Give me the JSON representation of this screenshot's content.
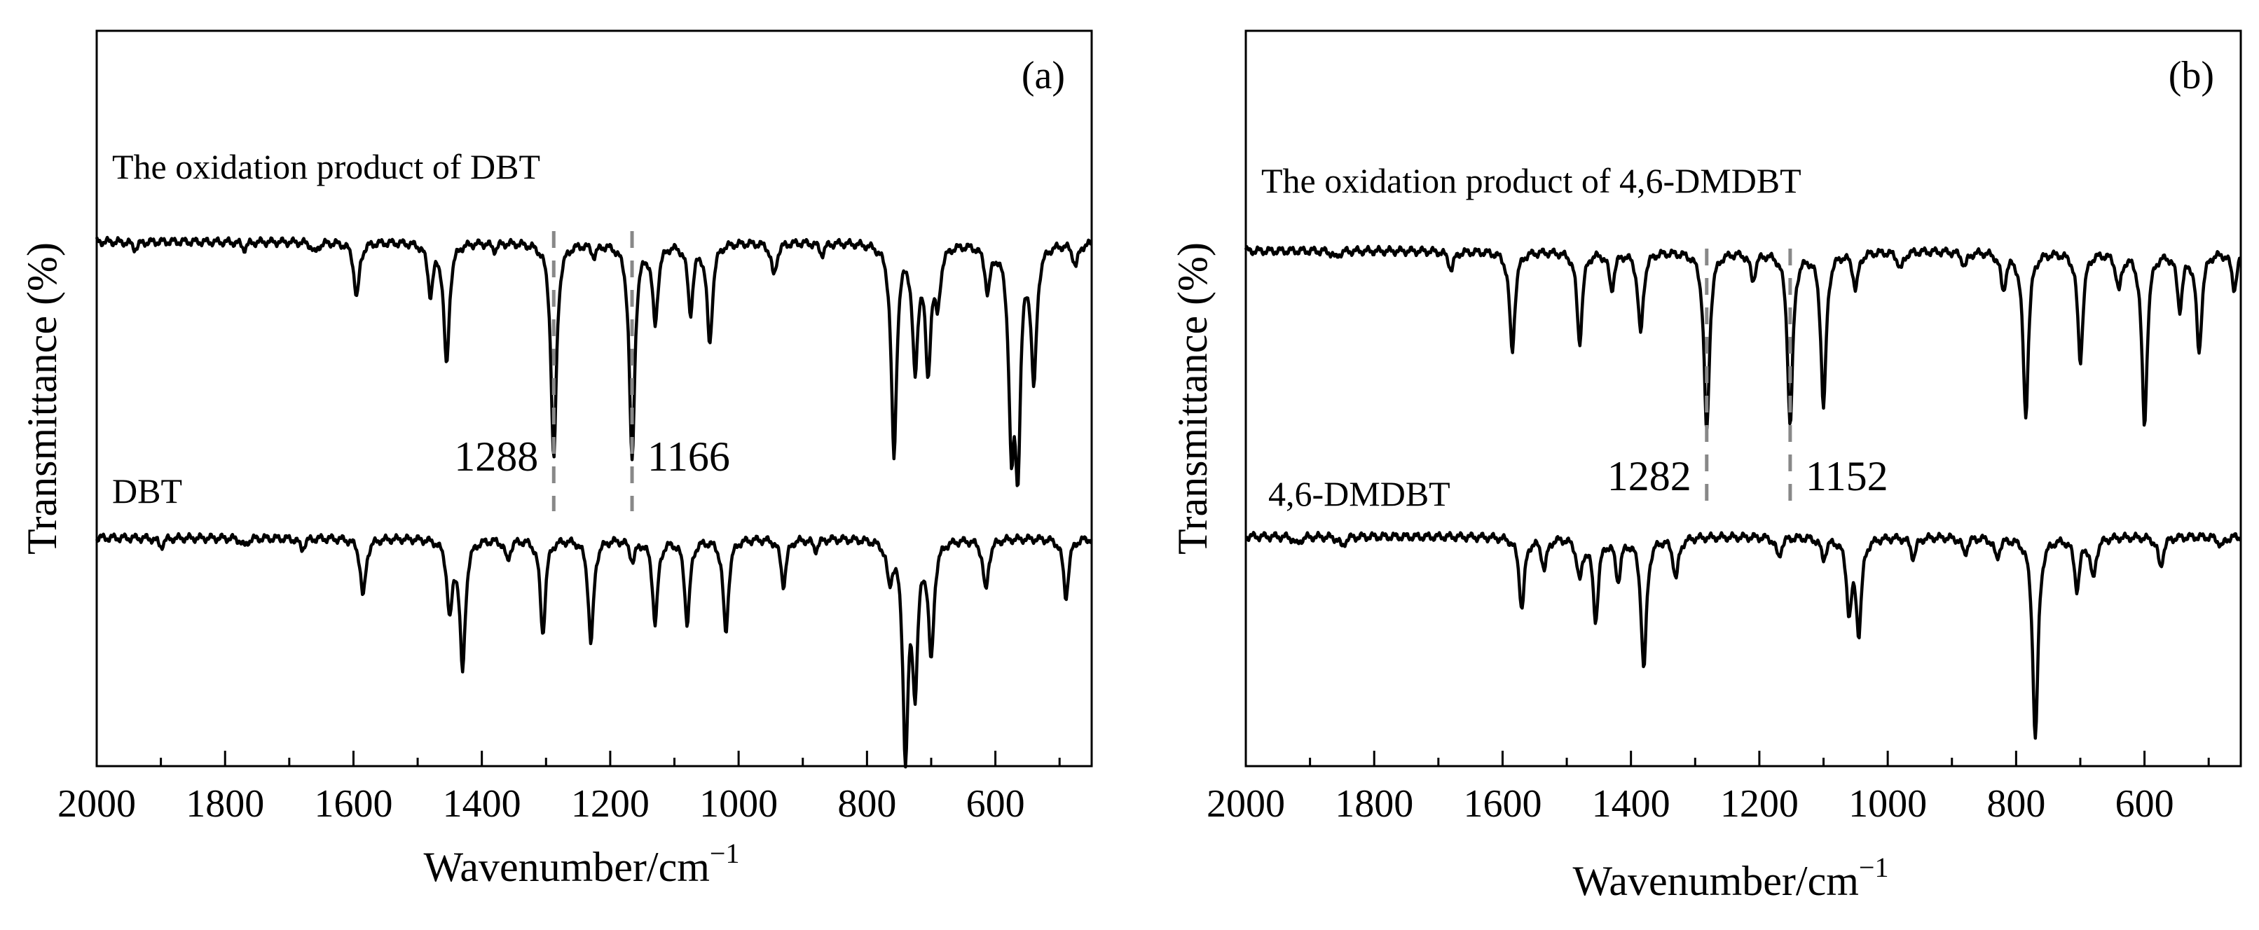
{
  "chart_data": [
    {
      "panel": "(a)",
      "type": "line",
      "xlabel": "Wavenumber/cm",
      "xlabel_sup": "−1",
      "ylabel": "Transmittance (%)",
      "xlim": [
        2000,
        450
      ],
      "x_ticks": [
        2000,
        1800,
        1600,
        1400,
        1200,
        1000,
        800,
        600
      ],
      "series": [
        {
          "name": "The oxidation product of DBT",
          "peaks": [
            [
              1940,
              0.03
            ],
            [
              1770,
              0.03
            ],
            [
              1660,
              0.05
            ],
            [
              1595,
              0.25
            ],
            [
              1480,
              0.22
            ],
            [
              1455,
              0.55
            ],
            [
              1380,
              0.03
            ],
            [
              1288,
              0.98
            ],
            [
              1225,
              0.05
            ],
            [
              1166,
              0.98
            ],
            [
              1130,
              0.35
            ],
            [
              1075,
              0.3
            ],
            [
              1045,
              0.45
            ],
            [
              945,
              0.15
            ],
            [
              870,
              0.05
            ],
            [
              758,
              0.95
            ],
            [
              725,
              0.55
            ],
            [
              705,
              0.55
            ],
            [
              690,
              0.25
            ],
            [
              612,
              0.2
            ],
            [
              575,
              0.82
            ],
            [
              565,
              0.9
            ],
            [
              540,
              0.6
            ],
            [
              475,
              0.1
            ]
          ]
        },
        {
          "name": "DBT",
          "peaks": [
            [
              1900,
              0.04
            ],
            [
              1770,
              0.04
            ],
            [
              1680,
              0.05
            ],
            [
              1585,
              0.28
            ],
            [
              1450,
              0.35
            ],
            [
              1430,
              0.62
            ],
            [
              1360,
              0.1
            ],
            [
              1305,
              0.45
            ],
            [
              1230,
              0.5
            ],
            [
              1165,
              0.1
            ],
            [
              1130,
              0.4
            ],
            [
              1080,
              0.4
            ],
            [
              1020,
              0.45
            ],
            [
              930,
              0.22
            ],
            [
              880,
              0.05
            ],
            [
              765,
              0.18
            ],
            [
              740,
              1.0
            ],
            [
              725,
              0.65
            ],
            [
              700,
              0.55
            ],
            [
              615,
              0.25
            ],
            [
              490,
              0.28
            ]
          ]
        }
      ],
      "annotations": [
        {
          "x": 1288,
          "text": "1288"
        },
        {
          "x": 1166,
          "text": "1166"
        }
      ]
    },
    {
      "panel": "(b)",
      "type": "line",
      "xlabel": "Wavenumber/cm",
      "xlabel_sup": "−1",
      "ylabel": "Transmittance (%)",
      "xlim": [
        2000,
        450
      ],
      "x_ticks": [
        2000,
        1800,
        1600,
        1400,
        1200,
        1000,
        800,
        600
      ],
      "series": [
        {
          "name": "The oxidation product of 4,6-DMDBT",
          "peaks": [
            [
              1860,
              0.04
            ],
            [
              1680,
              0.1
            ],
            [
              1585,
              0.55
            ],
            [
              1480,
              0.5
            ],
            [
              1430,
              0.2
            ],
            [
              1385,
              0.45
            ],
            [
              1282,
              1.0
            ],
            [
              1210,
              0.15
            ],
            [
              1152,
              0.95
            ],
            [
              1100,
              0.85
            ],
            [
              1050,
              0.2
            ],
            [
              980,
              0.1
            ],
            [
              880,
              0.08
            ],
            [
              820,
              0.2
            ],
            [
              785,
              0.9
            ],
            [
              700,
              0.6
            ],
            [
              640,
              0.2
            ],
            [
              600,
              0.95
            ],
            [
              545,
              0.3
            ],
            [
              515,
              0.55
            ],
            [
              460,
              0.2
            ]
          ]
        },
        {
          "name": "4,6-DMDBT",
          "peaks": [
            [
              1920,
              0.04
            ],
            [
              1850,
              0.05
            ],
            [
              1570,
              0.35
            ],
            [
              1535,
              0.15
            ],
            [
              1480,
              0.2
            ],
            [
              1455,
              0.4
            ],
            [
              1420,
              0.2
            ],
            [
              1380,
              0.65
            ],
            [
              1330,
              0.2
            ],
            [
              1170,
              0.1
            ],
            [
              1100,
              0.1
            ],
            [
              1060,
              0.35
            ],
            [
              1045,
              0.45
            ],
            [
              960,
              0.1
            ],
            [
              880,
              0.08
            ],
            [
              830,
              0.1
            ],
            [
              770,
              1.0
            ],
            [
              705,
              0.25
            ],
            [
              680,
              0.2
            ],
            [
              575,
              0.15
            ],
            [
              480,
              0.05
            ]
          ]
        }
      ],
      "annotations": [
        {
          "x": 1282,
          "text": "1282"
        },
        {
          "x": 1152,
          "text": "1152"
        }
      ]
    }
  ]
}
